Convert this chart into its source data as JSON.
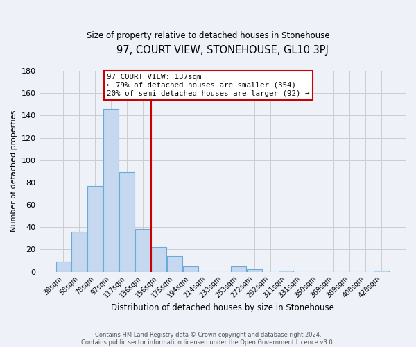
{
  "title": "97, COURT VIEW, STONEHOUSE, GL10 3PJ",
  "subtitle": "Size of property relative to detached houses in Stonehouse",
  "bar_labels": [
    "39sqm",
    "58sqm",
    "78sqm",
    "97sqm",
    "117sqm",
    "136sqm",
    "156sqm",
    "175sqm",
    "194sqm",
    "214sqm",
    "233sqm",
    "253sqm",
    "272sqm",
    "292sqm",
    "311sqm",
    "331sqm",
    "350sqm",
    "369sqm",
    "389sqm",
    "408sqm",
    "428sqm"
  ],
  "bar_values": [
    9,
    36,
    77,
    146,
    89,
    38,
    22,
    14,
    5,
    0,
    0,
    5,
    2,
    0,
    1,
    0,
    0,
    0,
    0,
    0,
    1
  ],
  "bar_color": "#c5d8f0",
  "bar_edge_color": "#6aaad4",
  "vline_color": "#cc0000",
  "vline_x_index": 5.5,
  "ylabel": "Number of detached properties",
  "xlabel": "Distribution of detached houses by size in Stonehouse",
  "ylim": [
    0,
    180
  ],
  "yticks": [
    0,
    20,
    40,
    60,
    80,
    100,
    120,
    140,
    160,
    180
  ],
  "annotation_title": "97 COURT VIEW: 137sqm",
  "annotation_line1": "← 79% of detached houses are smaller (354)",
  "annotation_line2": "20% of semi-detached houses are larger (92) →",
  "annotation_box_color": "#ffffff",
  "annotation_box_edge": "#cc0000",
  "footer1": "Contains HM Land Registry data © Crown copyright and database right 2024.",
  "footer2": "Contains public sector information licensed under the Open Government Licence v3.0.",
  "grid_color": "#cccccc",
  "background_color": "#eef2f8"
}
